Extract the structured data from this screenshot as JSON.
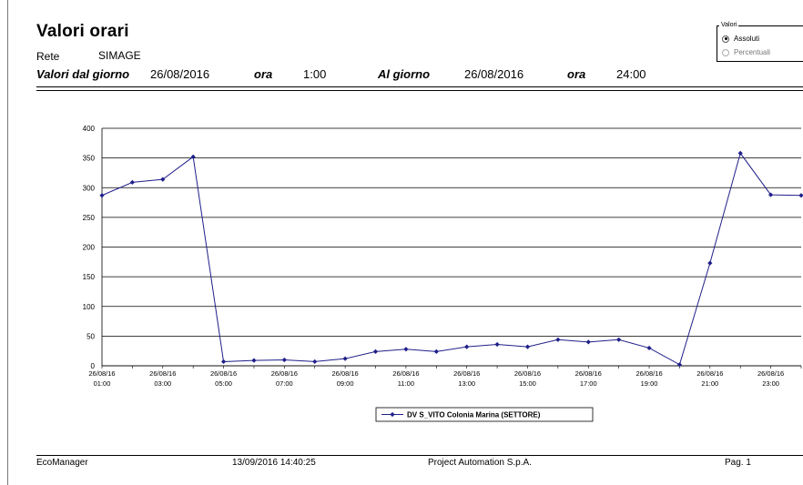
{
  "report": {
    "title": "Valori orari",
    "rete_label": "Rete",
    "rete_value": "SIMAGE",
    "from_label": "Valori dal giorno",
    "from_date": "26/08/2016",
    "from_ora_label": "ora",
    "from_time": "1:00",
    "to_label": "Al giorno",
    "to_date": "26/08/2016",
    "to_ora_label": "ora",
    "to_time": "24:00"
  },
  "values_panel": {
    "title": "Valori",
    "options": [
      {
        "label": "Assoluti",
        "selected": true
      },
      {
        "label": "Percentuali",
        "selected": false
      }
    ]
  },
  "chart_data": {
    "type": "line",
    "title": "",
    "xlabel": "",
    "ylabel": "",
    "ylim": [
      0,
      400
    ],
    "yticks": [
      0,
      50,
      100,
      150,
      200,
      250,
      300,
      350,
      400
    ],
    "grid": true,
    "legend_position": "bottom-center",
    "x_tick_labels": [
      [
        "26/08/16",
        "01:00"
      ],
      [
        "26/08/16",
        "03:00"
      ],
      [
        "26/08/16",
        "05:00"
      ],
      [
        "26/08/16",
        "07:00"
      ],
      [
        "26/08/16",
        "09:00"
      ],
      [
        "26/08/16",
        "11:00"
      ],
      [
        "26/08/16",
        "13:00"
      ],
      [
        "26/08/16",
        "15:00"
      ],
      [
        "26/08/16",
        "17:00"
      ],
      [
        "26/08/16",
        "19:00"
      ],
      [
        "26/08/16",
        "21:00"
      ],
      [
        "26/08/16",
        "23:00"
      ]
    ],
    "categories": [
      "01:00",
      "02:00",
      "03:00",
      "04:00",
      "05:00",
      "06:00",
      "07:00",
      "08:00",
      "09:00",
      "10:00",
      "11:00",
      "12:00",
      "13:00",
      "14:00",
      "15:00",
      "16:00",
      "17:00",
      "18:00",
      "19:00",
      "20:00",
      "21:00",
      "22:00",
      "23:00",
      "24:00"
    ],
    "series": [
      {
        "name": "DV S_VITO Colonia Marina (SETTORE)",
        "color": "#1f1f8a",
        "values": [
          287,
          309,
          314,
          352,
          7,
          9,
          10,
          7,
          12,
          24,
          28,
          24,
          32,
          36,
          32,
          44,
          40,
          44,
          30,
          2,
          173,
          358,
          288,
          287
        ]
      }
    ]
  },
  "footer": {
    "app": "EcoManager",
    "timestamp": "13/09/2016 14:40:25",
    "company": "Project Automation S.p.A.",
    "page": "Pag. 1"
  }
}
